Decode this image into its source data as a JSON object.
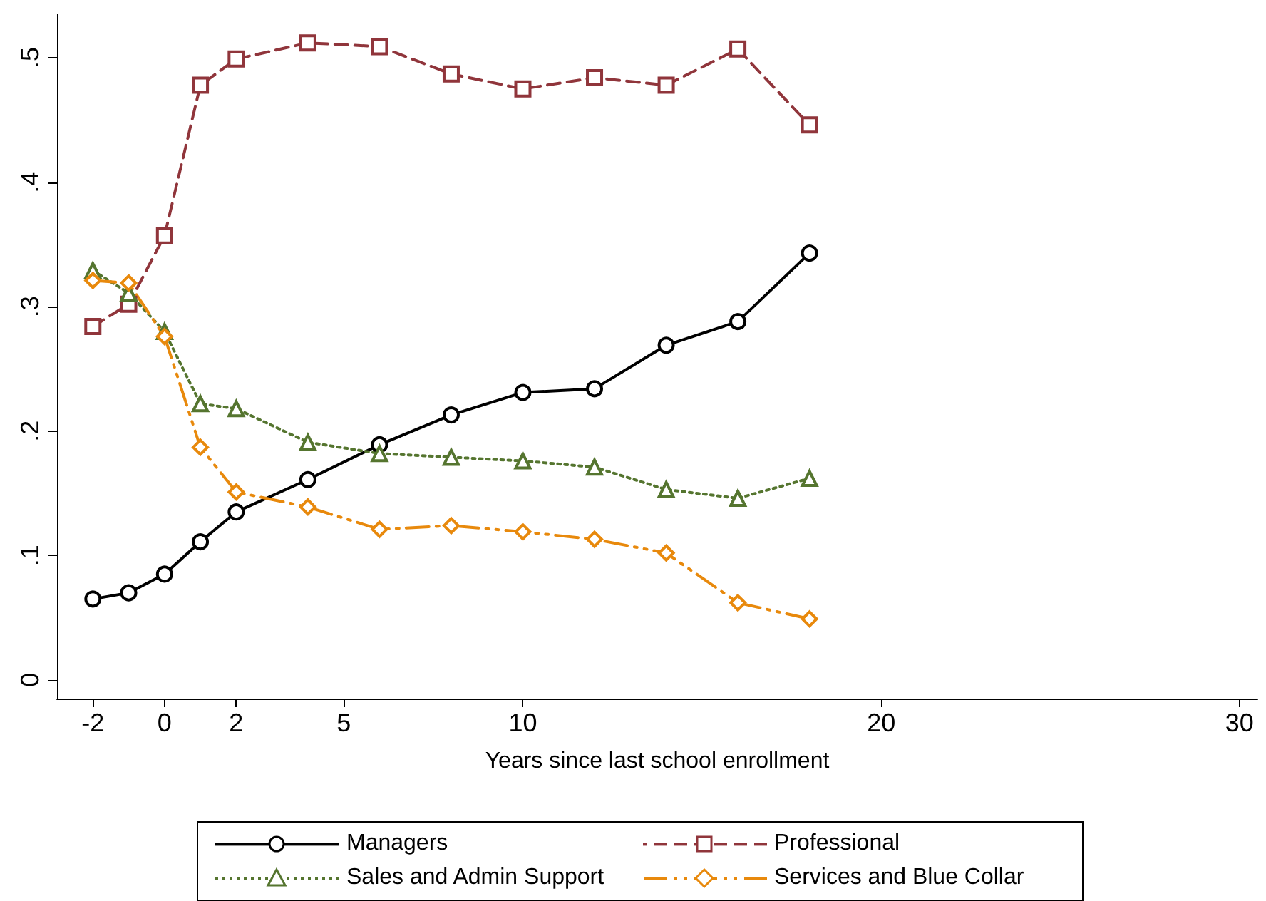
{
  "chart_data": {
    "type": "line",
    "xlabel": "Years since last school enrollment",
    "xlim": [
      -3,
      30.5
    ],
    "xticks": [
      -2,
      0,
      2,
      5,
      10,
      20,
      30
    ],
    "ylim": [
      -0.015,
      0.535
    ],
    "yticks": [
      {
        "value": 0,
        "label": "0"
      },
      {
        "value": 0.1,
        "label": ".1"
      },
      {
        "value": 0.2,
        "label": ".2"
      },
      {
        "value": 0.3,
        "label": ".3"
      },
      {
        "value": 0.4,
        "label": ".4"
      },
      {
        "value": 0.5,
        "label": ".5"
      }
    ],
    "x": [
      -2,
      -1,
      0,
      1,
      2,
      4,
      6,
      8,
      10,
      12,
      14,
      16,
      18
    ],
    "grid": false,
    "legend": "bottom",
    "series": [
      {
        "name": "Managers",
        "color": "#000000",
        "marker": "circle",
        "line_style": "solid",
        "values": [
          0.065,
          0.07,
          0.085,
          0.111,
          0.135,
          0.161,
          0.189,
          0.213,
          0.231,
          0.234,
          0.269,
          0.288,
          0.343
        ]
      },
      {
        "name": "Professional",
        "color": "#90353b",
        "marker": "square",
        "line_style": "dashed",
        "values": [
          0.284,
          0.302,
          0.357,
          0.478,
          0.499,
          0.512,
          0.509,
          0.487,
          0.475,
          0.484,
          0.478,
          0.507,
          0.446
        ]
      },
      {
        "name": "Sales and Admin Support",
        "color": "#55752f",
        "marker": "triangle",
        "line_style": "dotted",
        "values": [
          0.329,
          0.311,
          0.28,
          0.222,
          0.218,
          0.191,
          0.182,
          0.179,
          0.176,
          0.171,
          0.153,
          0.146,
          0.162
        ]
      },
      {
        "name": "Services and Blue Collar",
        "color": "#e8890c",
        "marker": "diamond",
        "line_style": "dashdot",
        "values": [
          0.321,
          0.319,
          0.276,
          0.187,
          0.151,
          0.139,
          0.121,
          0.124,
          0.119,
          0.113,
          0.102,
          0.062,
          0.049
        ]
      }
    ]
  }
}
